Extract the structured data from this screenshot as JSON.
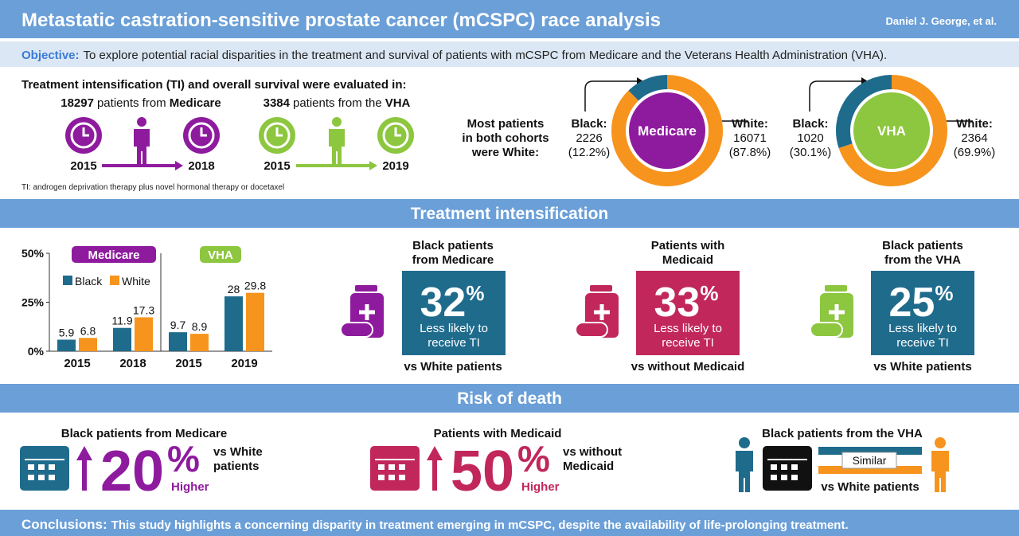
{
  "header": {
    "title": "Metastatic castration-sensitive prostate cancer (mCSPC) race analysis",
    "author": "Daniel J. George, et al."
  },
  "objective": {
    "label": "Objective:",
    "text": "To explore potential racial disparities in the treatment and survival of patients with mCSPC from Medicare and the Veterans Health Administration (VHA)."
  },
  "cohorts": {
    "heading": "Treatment intensification (TI) and overall survival were evaluated in:",
    "items": [
      {
        "count": "18297",
        "text": "patients from",
        "source": "Medicare",
        "start": "2015",
        "end": "2018"
      },
      {
        "count": "3384",
        "text": "patients from the",
        "source": "VHA",
        "start": "2015",
        "end": "2019"
      }
    ],
    "footnote": "TI: androgen deprivation therapy plus novel hormonal therapy or docetaxel"
  },
  "race_split": {
    "caption": [
      "Most patients",
      "in both cohorts",
      "were White:"
    ]
  },
  "chart_data": [
    {
      "type": "bar",
      "groups": [
        {
          "name": "Medicare",
          "color": "#8e1b9e"
        },
        {
          "name": "VHA",
          "color": "#8dc63f"
        }
      ],
      "categories": [
        "2015",
        "2018",
        "2015",
        "2019"
      ],
      "series": [
        {
          "name": "Black",
          "color": "#1f6b8c",
          "values": [
            5.9,
            11.9,
            9.7,
            28
          ]
        },
        {
          "name": "White",
          "color": "#f7941d",
          "values": [
            6.8,
            17.3,
            8.9,
            29.8
          ]
        }
      ],
      "ylim": [
        0,
        50
      ],
      "yticks": [
        {
          "value": 0,
          "label": "0%"
        },
        {
          "value": 25,
          "label": "25%"
        },
        {
          "value": 50,
          "label": "50%"
        }
      ],
      "legend": "upper left"
    },
    {
      "type": "pie",
      "center_label": "Medicare",
      "center_color": "#8e1b9e",
      "categories": [
        "Black:",
        "White:"
      ],
      "counts": [
        2226,
        16071
      ],
      "values": [
        12.2,
        87.8
      ],
      "value_labels": [
        "(12.2%)",
        "(87.8%)"
      ],
      "colors": [
        "#1f6b8c",
        "#f7941d"
      ]
    },
    {
      "type": "pie",
      "center_label": "VHA",
      "center_color": "#8dc63f",
      "categories": [
        "Black:",
        "White:"
      ],
      "counts": [
        1020,
        2364
      ],
      "values": [
        30.1,
        69.9
      ],
      "value_labels": [
        "(30.1%)",
        "(69.9%)"
      ],
      "colors": [
        "#1f6b8c",
        "#f7941d"
      ]
    }
  ],
  "sections": {
    "treatment": "Treatment intensification",
    "risk": "Risk of death"
  },
  "ti_findings": [
    {
      "heading": [
        "Black patients",
        "from Medicare"
      ],
      "figure": "32",
      "unit": "%",
      "text": [
        "Less likely to",
        "receive TI"
      ],
      "comparison": "vs White patients"
    },
    {
      "heading": [
        "Patients with",
        "Medicaid"
      ],
      "figure": "33",
      "unit": "%",
      "text": [
        "Less likely to",
        "receive TI"
      ],
      "comparison": "vs without Medicaid"
    },
    {
      "heading": [
        "Black patients",
        "from the VHA"
      ],
      "figure": "25",
      "unit": "%",
      "text": [
        "Less likely to",
        "receive TI"
      ],
      "comparison": "vs White patients"
    }
  ],
  "risk_findings": [
    {
      "heading": "Black patients from Medicare",
      "figure": "20",
      "unit": "%",
      "change": "Higher",
      "comparison": [
        "vs White",
        "patients"
      ]
    },
    {
      "heading": "Patients with Medicaid",
      "figure": "50",
      "unit": "%",
      "change": "Higher",
      "comparison": [
        "vs without",
        "Medicaid"
      ]
    },
    {
      "heading": "Black patients from the VHA",
      "badge": "Similar",
      "comparison": "vs White patients"
    }
  ],
  "conclusions": {
    "label": "Conclusions:",
    "text": "This study highlights a concerning disparity in treatment emerging in mCSPC, despite the availability of life-prolonging treatment."
  }
}
